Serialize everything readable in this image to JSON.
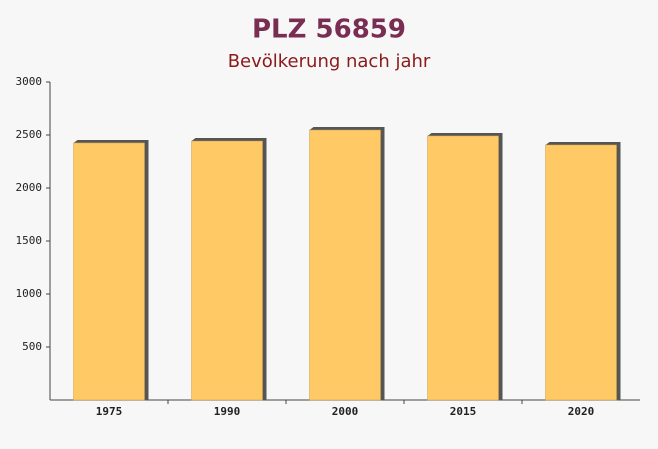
{
  "chart_data": {
    "type": "bar",
    "title": "PLZ 56859",
    "subtitle": "Bevölkerung nach jahr",
    "categories": [
      "1975",
      "1990",
      "2000",
      "2015",
      "2020"
    ],
    "values": [
      2425,
      2443,
      2547,
      2491,
      2406
    ],
    "color": "#ffc966",
    "ylim": [
      0,
      3000
    ],
    "yticks": [
      500,
      1000,
      1500,
      2000,
      2500,
      3000
    ]
  }
}
